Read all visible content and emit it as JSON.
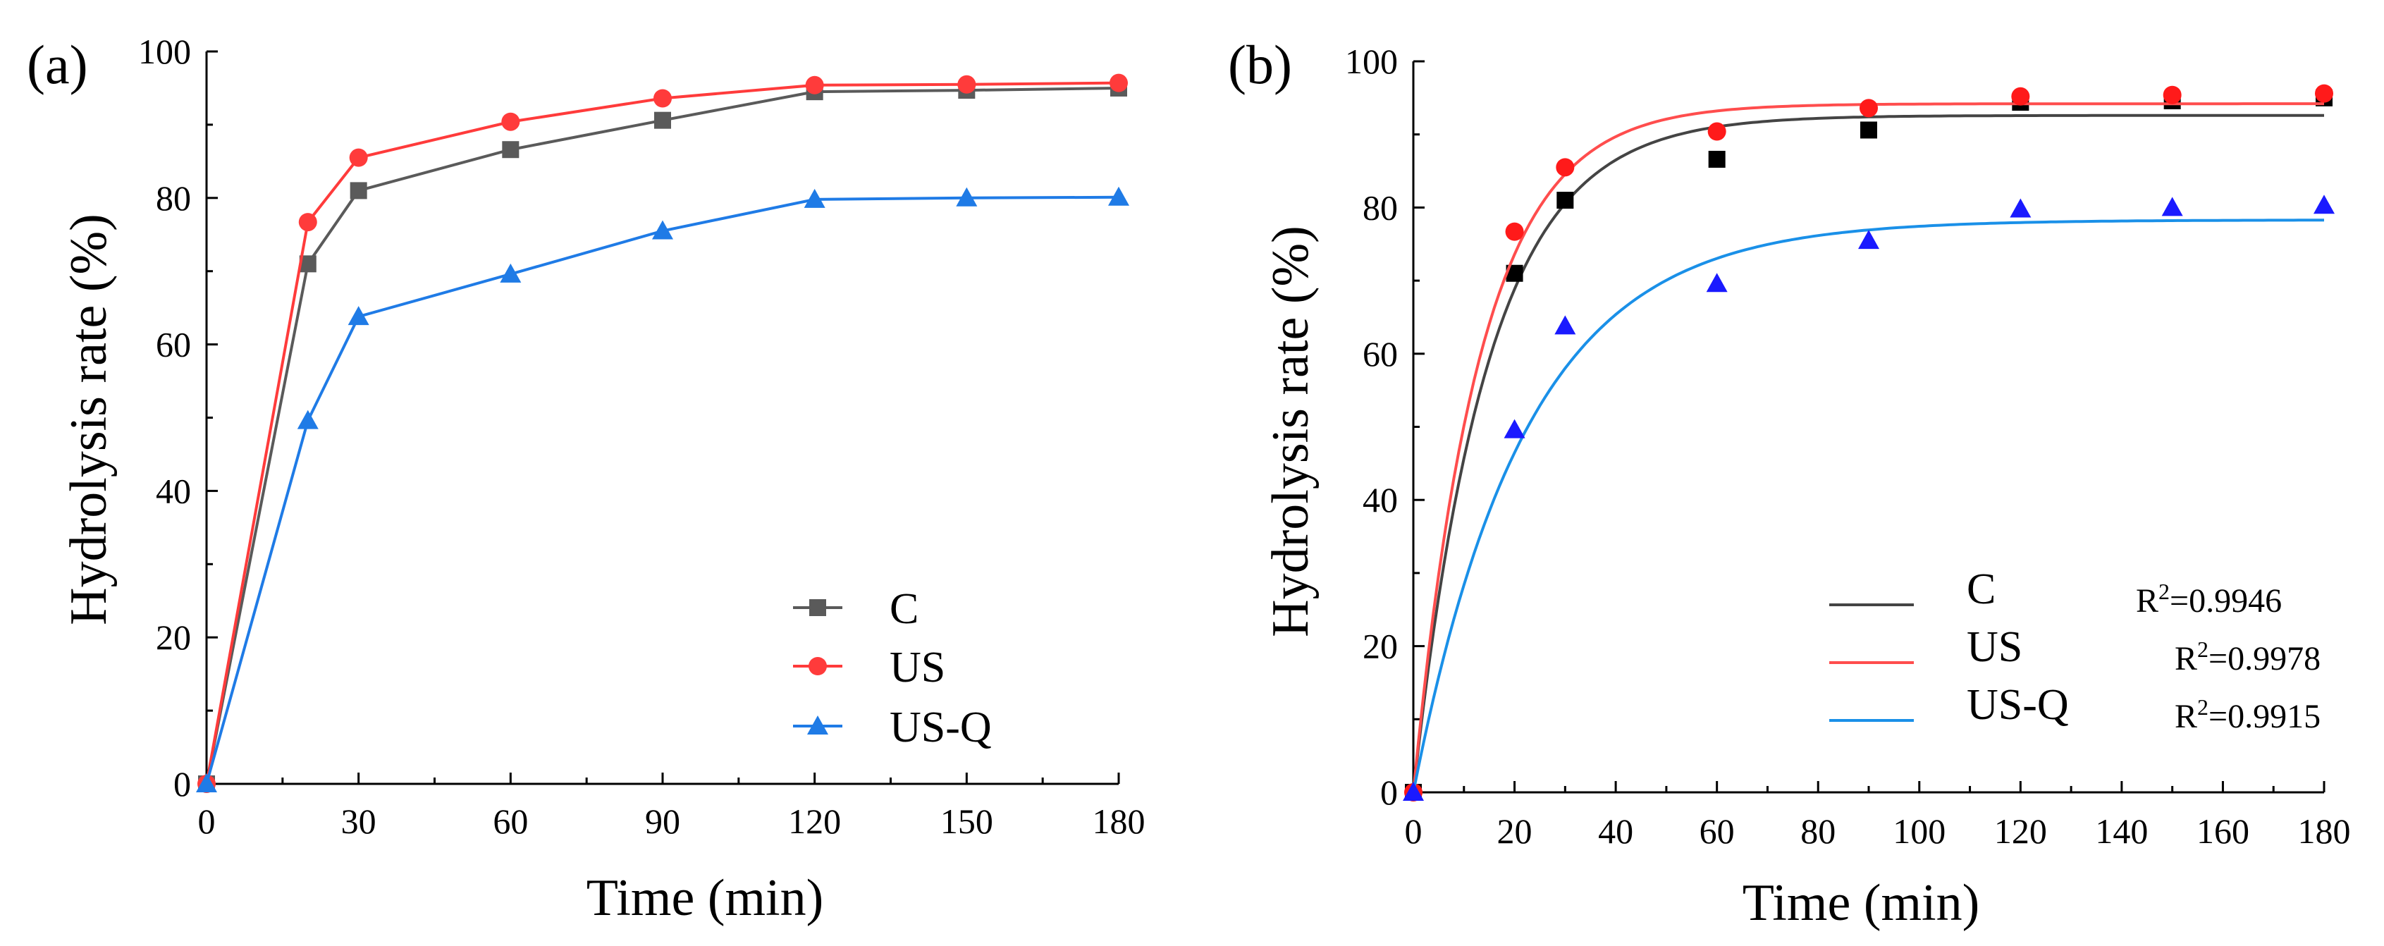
{
  "chart_data": [
    {
      "type": "line",
      "panel_label": "(a)",
      "xlabel": "Time (min)",
      "ylabel": "Hydrolysis rate (%)",
      "xlim": [
        0,
        180
      ],
      "ylim": [
        0,
        100
      ],
      "xticks": [
        0,
        30,
        60,
        90,
        120,
        150,
        180
      ],
      "yticks": [
        0,
        20,
        40,
        60,
        80,
        100
      ],
      "legend_position": "bottom-right",
      "x": [
        0,
        20,
        30,
        60,
        90,
        120,
        150,
        180
      ],
      "series": [
        {
          "name": "C",
          "color": "#5a5a5a",
          "marker": "square",
          "values": [
            0,
            71,
            81,
            86.6,
            90.6,
            94.5,
            94.7,
            95
          ]
        },
        {
          "name": "US",
          "color": "#ff3b3b",
          "marker": "circle",
          "values": [
            0,
            76.7,
            85.5,
            90.4,
            93.6,
            95.4,
            95.5,
            95.7
          ]
        },
        {
          "name": "US-Q",
          "color": "#1f7be6",
          "marker": "triangle",
          "values": [
            0,
            49.6,
            63.8,
            69.6,
            75.5,
            79.8,
            80,
            80.1
          ]
        }
      ]
    },
    {
      "type": "scatter",
      "panel_label": "(b)",
      "xlabel": "Time (min)",
      "ylabel": "Hydrolysis rate (%)",
      "xlim": [
        0,
        180
      ],
      "ylim": [
        0,
        100
      ],
      "xticks": [
        0,
        20,
        40,
        60,
        80,
        100,
        120,
        140,
        160,
        180
      ],
      "yticks": [
        0,
        20,
        40,
        60,
        80,
        100
      ],
      "legend_position": "bottom-right",
      "x": [
        0,
        20,
        30,
        60,
        90,
        120,
        150,
        180
      ],
      "series": [
        {
          "name": "C",
          "r2": "R2=0.9946",
          "color": "#000000",
          "line_color": "#444444",
          "marker": "square",
          "values": [
            0,
            71,
            81,
            86.6,
            90.6,
            94.4,
            94.6,
            95
          ],
          "fit": {
            "plateau": 92.6,
            "k": 0.068
          }
        },
        {
          "name": "US",
          "r2": "R2=0.9978",
          "color": "#ff1a1a",
          "line_color": "#ff4d4d",
          "marker": "circle",
          "values": [
            0,
            76.7,
            85.5,
            90.4,
            93.6,
            95.2,
            95.4,
            95.6
          ],
          "fit": {
            "plateau": 94.2,
            "k": 0.076
          }
        },
        {
          "name": "US-Q",
          "r2": "R2=0.9915",
          "color": "#1a1aff",
          "line_color": "#1a90e8",
          "marker": "triangle",
          "values": [
            0,
            49.6,
            63.8,
            69.6,
            75.5,
            79.8,
            80,
            80.3
          ],
          "fit": {
            "plateau": 78.3,
            "k": 0.045
          }
        }
      ]
    }
  ]
}
